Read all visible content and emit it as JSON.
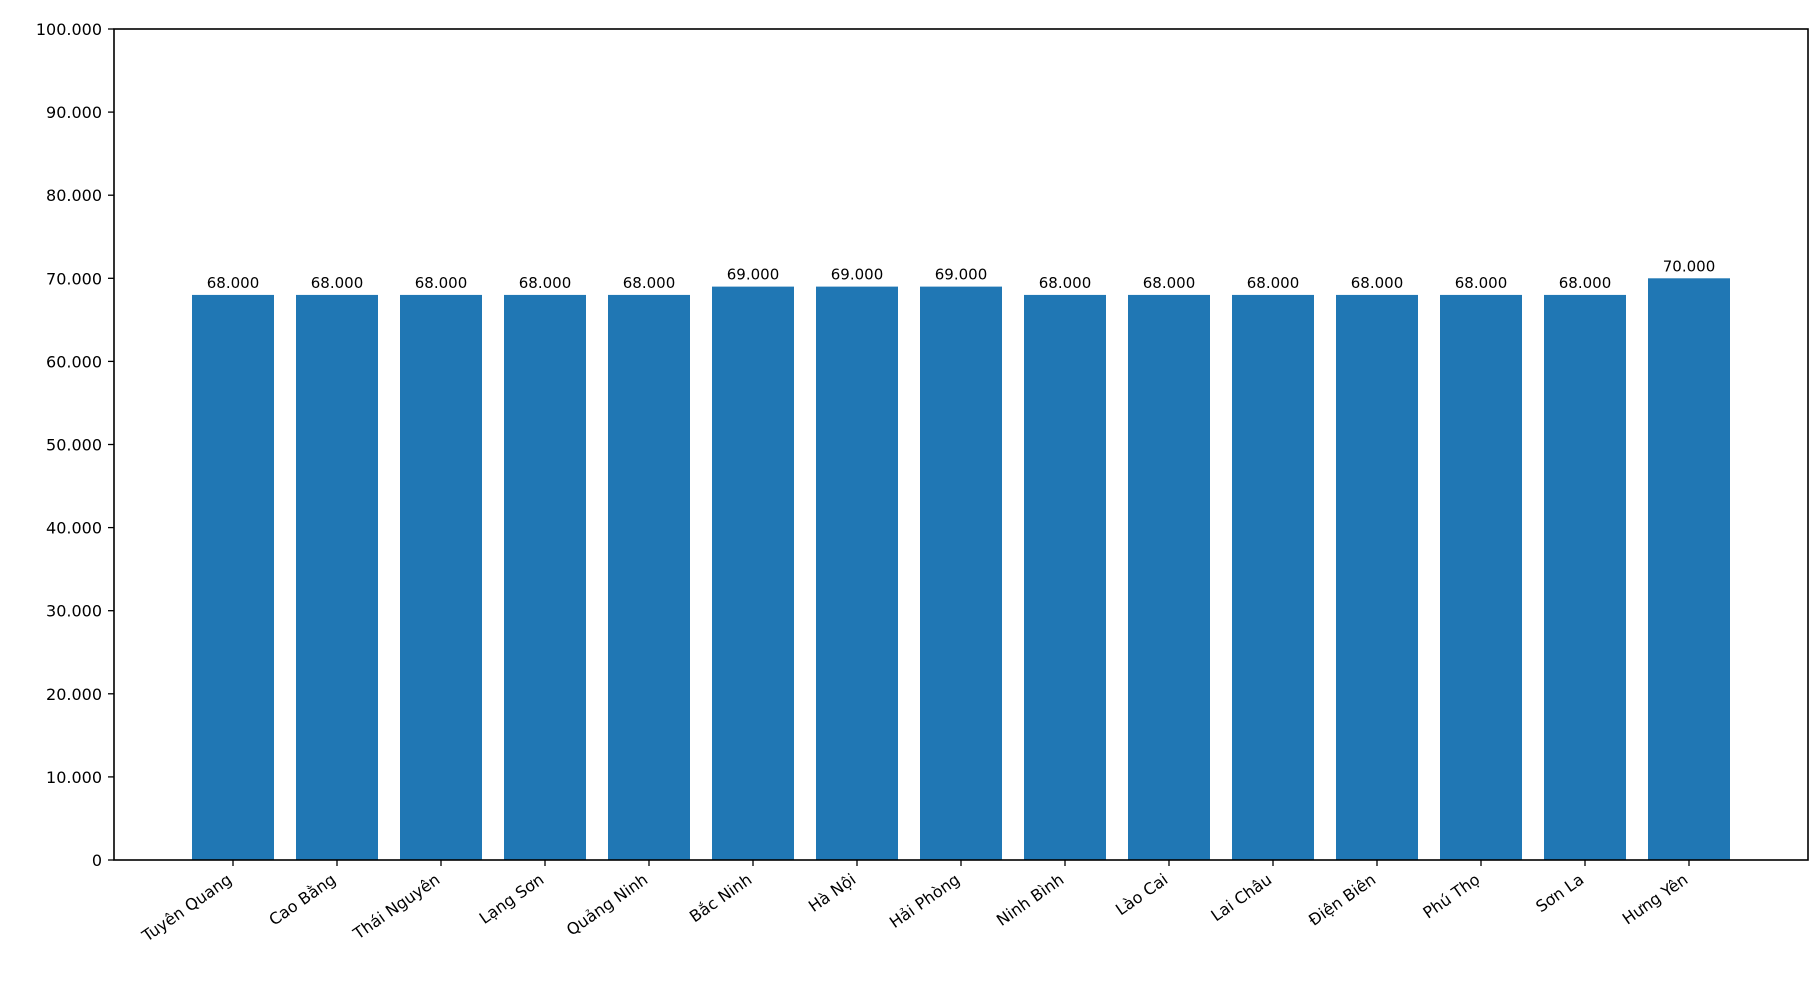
{
  "chart_data": {
    "type": "bar",
    "title": "",
    "xlabel": "",
    "ylabel": "",
    "categories": [
      "Tuyên Quang",
      "Cao Bằng",
      "Thái Nguyên",
      "Lạng Sơn",
      "Quảng Ninh",
      "Bắc Ninh",
      "Hà Nội",
      "Hải Phòng",
      "Ninh Bình",
      "Lào Cai",
      "Lai Châu",
      "Điện Biên",
      "Phú Thọ",
      "Sơn La",
      "Hưng Yên"
    ],
    "values": [
      68000,
      68000,
      68000,
      68000,
      68000,
      69000,
      69000,
      69000,
      68000,
      68000,
      68000,
      68000,
      68000,
      68000,
      70000
    ],
    "value_labels": [
      "68.000",
      "68.000",
      "68.000",
      "68.000",
      "68.000",
      "69.000",
      "69.000",
      "69.000",
      "68.000",
      "68.000",
      "68.000",
      "68.000",
      "68.000",
      "68.000",
      "70.000"
    ],
    "ylim": [
      0,
      100000
    ],
    "yticks": [
      0,
      10000,
      20000,
      30000,
      40000,
      50000,
      60000,
      70000,
      80000,
      90000,
      100000
    ],
    "ytick_labels": [
      "0",
      "10.000",
      "20.000",
      "30.000",
      "40.000",
      "50.000",
      "60.000",
      "70.000",
      "80.000",
      "90.000",
      "100.000"
    ],
    "bar_color": "#2077b4",
    "grid": false,
    "legend": "none"
  }
}
